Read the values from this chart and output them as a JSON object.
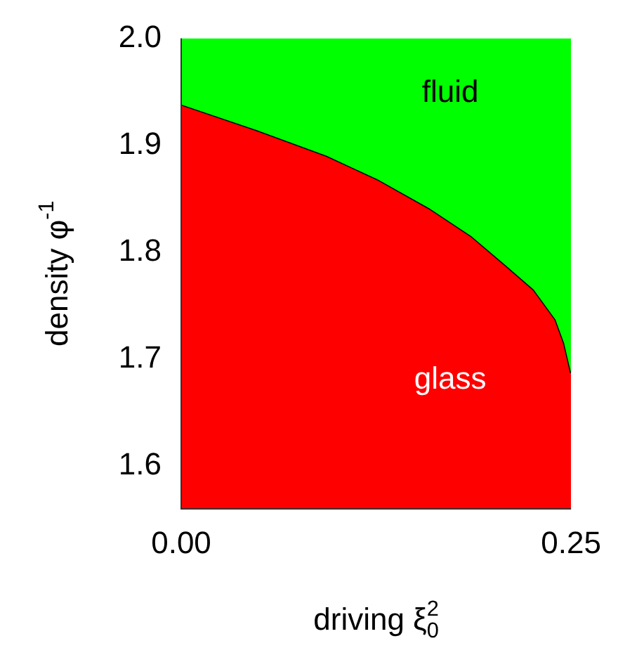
{
  "chart_data": {
    "type": "area",
    "xlabel": "driving ξ$_{0}$$^{2}$",
    "ylabel": "density φ$^{-1}$",
    "x": [
      0,
      0.0486,
      0.0934,
      0.126,
      0.159,
      0.186,
      0.207,
      0.226,
      0.24,
      0.2455,
      0.25
    ],
    "series": [
      {
        "color": "#ff0000",
        "values": [
          1.938,
          1.914,
          1.89,
          1.868,
          1.841,
          1.815,
          1.789,
          1.765,
          1.737,
          1.715,
          1.687
        ]
      },
      {
        "color": "#00ff00",
        "values": [
          2.0,
          2.0,
          2.0,
          2.0,
          2.0,
          2.0,
          2.0,
          2.0,
          2.0,
          2.0,
          2.0
        ]
      }
    ],
    "xlim": [
      0,
      0.25
    ],
    "xticks": [
      {
        "value": 0,
        "label": "0.00"
      },
      {
        "value": 0.25,
        "label": "0.25"
      }
    ],
    "ylim": [
      1.56,
      2.0
    ],
    "yticks": [
      {
        "value": 1.6,
        "label": "1.6"
      },
      {
        "value": 1.7,
        "label": "1.7"
      },
      {
        "value": 1.8,
        "label": "1.8"
      },
      {
        "value": 1.9,
        "label": "1.9"
      },
      {
        "value": 2.0,
        "label": "2.0"
      }
    ],
    "annotations": [
      "fluid",
      "glass"
    ],
    "grid": false,
    "legend": false
  }
}
